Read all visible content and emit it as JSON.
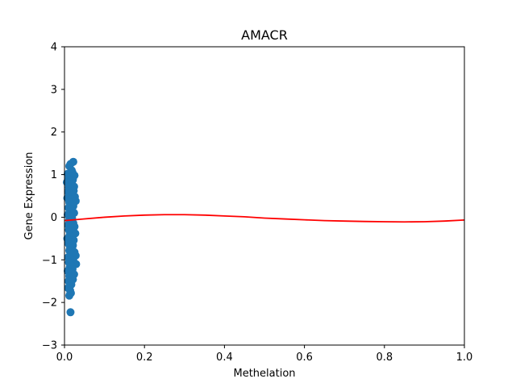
{
  "chart_data": {
    "type": "scatter",
    "title": "AMACR",
    "xlabel": "Methelation",
    "ylabel": "Gene Expression",
    "xlim": [
      0.0,
      1.0
    ],
    "ylim": [
      -3,
      4
    ],
    "xticks": [
      "0.0",
      "0.2",
      "0.4",
      "0.6",
      "0.8",
      "1.0"
    ],
    "yticks": [
      "−3",
      "−2",
      "−1",
      "0",
      "1",
      "2",
      "3",
      "4"
    ],
    "grid": false,
    "colors": {
      "points": "#1f77b4",
      "fit": "#ff0000"
    },
    "series": [
      {
        "type": "scatter",
        "points": [
          [
            0.015,
            1.25
          ],
          [
            0.022,
            1.3
          ],
          [
            0.012,
            1.2
          ],
          [
            0.018,
            1.1
          ],
          [
            0.02,
            1.05
          ],
          [
            0.008,
            1.02
          ],
          [
            0.025,
            0.98
          ],
          [
            0.016,
            0.95
          ],
          [
            0.01,
            0.9
          ],
          [
            0.021,
            0.88
          ],
          [
            0.014,
            0.85
          ],
          [
            0.006,
            0.82
          ],
          [
            0.019,
            0.78
          ],
          [
            0.024,
            0.72
          ],
          [
            0.011,
            0.7
          ],
          [
            0.017,
            0.65
          ],
          [
            0.023,
            0.62
          ],
          [
            0.009,
            0.6
          ],
          [
            0.013,
            0.55
          ],
          [
            0.02,
            0.52
          ],
          [
            0.026,
            0.48
          ],
          [
            0.007,
            0.45
          ],
          [
            0.015,
            0.42
          ],
          [
            0.028,
            0.38
          ],
          [
            0.012,
            0.35
          ],
          [
            0.018,
            0.3
          ],
          [
            0.022,
            0.26
          ],
          [
            0.01,
            0.22
          ],
          [
            0.016,
            0.18
          ],
          [
            0.02,
            0.14
          ],
          [
            0.024,
            0.1
          ],
          [
            0.008,
            0.06
          ],
          [
            0.014,
            0.02
          ],
          [
            0.019,
            -0.02
          ],
          [
            0.012,
            -0.06
          ],
          [
            0.017,
            -0.1
          ],
          [
            0.022,
            -0.14
          ],
          [
            0.009,
            -0.18
          ],
          [
            0.025,
            -0.22
          ],
          [
            0.015,
            -0.26
          ],
          [
            0.011,
            -0.3
          ],
          [
            0.02,
            -0.34
          ],
          [
            0.027,
            -0.38
          ],
          [
            0.013,
            -0.42
          ],
          [
            0.018,
            -0.46
          ],
          [
            0.007,
            -0.5
          ],
          [
            0.023,
            -0.54
          ],
          [
            0.016,
            -0.58
          ],
          [
            0.01,
            -0.62
          ],
          [
            0.021,
            -0.66
          ],
          [
            0.014,
            -0.7
          ],
          [
            0.019,
            -0.74
          ],
          [
            0.012,
            -0.78
          ],
          [
            0.025,
            -0.82
          ],
          [
            0.017,
            -0.86
          ],
          [
            0.028,
            -0.9
          ],
          [
            0.009,
            -0.94
          ],
          [
            0.015,
            -0.98
          ],
          [
            0.022,
            -1.02
          ],
          [
            0.011,
            -1.06
          ],
          [
            0.029,
            -1.1
          ],
          [
            0.018,
            -1.14
          ],
          [
            0.013,
            -1.18
          ],
          [
            0.02,
            -1.22
          ],
          [
            0.008,
            -1.26
          ],
          [
            0.016,
            -1.3
          ],
          [
            0.024,
            -1.34
          ],
          [
            0.012,
            -1.38
          ],
          [
            0.019,
            -1.42
          ],
          [
            0.021,
            -1.46
          ],
          [
            0.01,
            -1.5
          ],
          [
            0.015,
            -1.54
          ],
          [
            0.017,
            -1.58
          ],
          [
            0.013,
            -1.62
          ],
          [
            0.009,
            -1.66
          ],
          [
            0.014,
            -1.72
          ],
          [
            0.016,
            -1.78
          ],
          [
            0.012,
            -1.84
          ],
          [
            0.015,
            -2.23
          ]
        ]
      },
      {
        "type": "line",
        "points": [
          [
            0.0,
            -0.08
          ],
          [
            0.05,
            -0.04
          ],
          [
            0.1,
            0.0
          ],
          [
            0.15,
            0.03
          ],
          [
            0.2,
            0.05
          ],
          [
            0.25,
            0.06
          ],
          [
            0.3,
            0.06
          ],
          [
            0.35,
            0.05
          ],
          [
            0.4,
            0.03
          ],
          [
            0.45,
            0.01
          ],
          [
            0.5,
            -0.02
          ],
          [
            0.55,
            -0.04
          ],
          [
            0.6,
            -0.06
          ],
          [
            0.65,
            -0.08
          ],
          [
            0.7,
            -0.09
          ],
          [
            0.75,
            -0.1
          ],
          [
            0.8,
            -0.105
          ],
          [
            0.85,
            -0.11
          ],
          [
            0.9,
            -0.105
          ],
          [
            0.95,
            -0.09
          ],
          [
            1.0,
            -0.065
          ]
        ]
      }
    ]
  }
}
